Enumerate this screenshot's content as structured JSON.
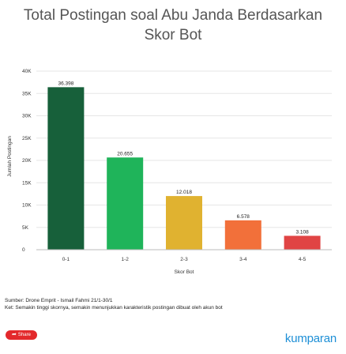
{
  "chart_data": {
    "type": "bar",
    "title": [
      "Total Postingan soal Abu Janda Berdasarkan",
      "Skor Bot"
    ],
    "xlabel": "Skor Bot",
    "ylabel": "Jumlah Postingan",
    "categories": [
      "0-1",
      "1-2",
      "2-3",
      "3-4",
      "4-5"
    ],
    "values": [
      36398,
      20655,
      12018,
      6578,
      3108
    ],
    "value_labels": [
      "36.398",
      "20.655",
      "12.018",
      "6.578",
      "3.108"
    ],
    "colors": [
      "#17603a",
      "#1fb45a",
      "#e0b230",
      "#f2703a",
      "#e04444"
    ],
    "ylim": [
      0,
      40000
    ],
    "yticks": [
      0,
      5000,
      10000,
      15000,
      20000,
      25000,
      30000,
      35000,
      40000
    ],
    "ytick_labels": [
      "0",
      "5K",
      "10K",
      "15K",
      "20K",
      "25K",
      "30K",
      "35K",
      "40K"
    ],
    "grid": true,
    "legend": "none"
  },
  "footer": {
    "source": "Sumber: Drone Emprit - Ismail Fahmi 21/1-30/1",
    "note": "Ket: Semakin tinggi skornya, semakin menunjukkan karakteristik postingan dibuat oleh akun bot"
  },
  "share": {
    "label": "Share",
    "icon": "share-icon"
  },
  "brand": {
    "name": "kumparan"
  }
}
